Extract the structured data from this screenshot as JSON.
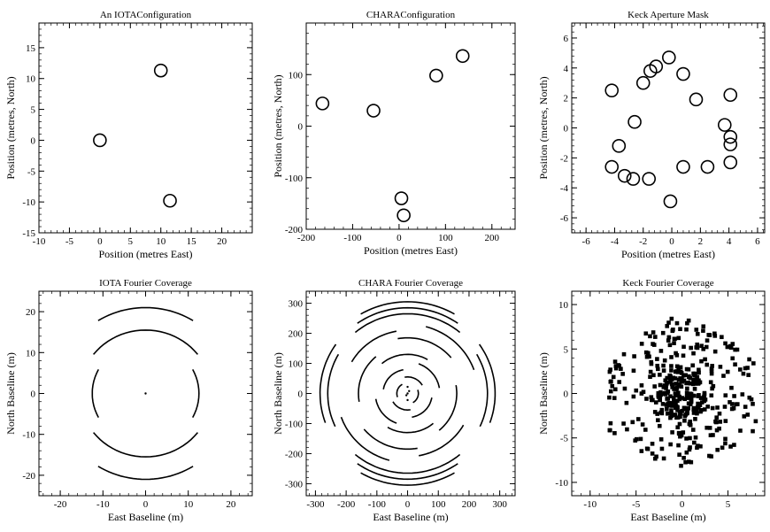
{
  "chart_data": [
    {
      "id": "iota-config",
      "type": "scatter",
      "title": "An IOTAConfiguration",
      "xlabel": "Position (metres East)",
      "ylabel": "Position (metres, North)",
      "xlim": [
        -10,
        25
      ],
      "ylim": [
        -15,
        19
      ],
      "xticks": [
        -10,
        -5,
        0,
        5,
        10,
        15,
        20
      ],
      "yticks": [
        -15,
        -10,
        -5,
        0,
        5,
        10,
        15
      ],
      "marker": "open-circle",
      "points": [
        [
          0,
          0
        ],
        [
          10,
          11.3
        ],
        [
          11.5,
          -9.8
        ]
      ]
    },
    {
      "id": "chara-config",
      "type": "scatter",
      "title": "CHARAConfiguration",
      "xlabel": "Position (metres East)",
      "ylabel": "Position (metres, North)",
      "xlim": [
        -200,
        250
      ],
      "ylim": [
        -200,
        200
      ],
      "xticks": [
        -200,
        -100,
        0,
        100,
        200
      ],
      "yticks": [
        -200,
        -100,
        0,
        100
      ],
      "marker": "open-circle",
      "points": [
        [
          -165,
          44
        ],
        [
          -55,
          30
        ],
        [
          5,
          -140
        ],
        [
          10,
          -173
        ],
        [
          80,
          98
        ],
        [
          137,
          136
        ]
      ]
    },
    {
      "id": "keck-mask",
      "type": "scatter",
      "title": "Keck Aperture Mask",
      "xlabel": "Position (metres East)",
      "ylabel": "Position (metres, North)",
      "xlim": [
        -7,
        6.5
      ],
      "ylim": [
        -7,
        7
      ],
      "xticks": [
        -6,
        -4,
        -2,
        0,
        2,
        4,
        6
      ],
      "yticks": [
        -6,
        -4,
        -2,
        0,
        2,
        4,
        6
      ],
      "marker": "open-circle",
      "points": [
        [
          -4.2,
          2.5
        ],
        [
          -2.0,
          3.0
        ],
        [
          -1.5,
          3.8
        ],
        [
          -1.1,
          4.1
        ],
        [
          -0.2,
          4.7
        ],
        [
          0.8,
          3.6
        ],
        [
          1.7,
          1.9
        ],
        [
          4.1,
          2.2
        ],
        [
          3.7,
          0.2
        ],
        [
          4.1,
          -0.6
        ],
        [
          4.1,
          -1.1
        ],
        [
          4.1,
          -2.3
        ],
        [
          2.5,
          -2.6
        ],
        [
          0.8,
          -2.6
        ],
        [
          -0.1,
          -4.9
        ],
        [
          -1.6,
          -3.4
        ],
        [
          -2.7,
          -3.4
        ],
        [
          -3.3,
          -3.2
        ],
        [
          -4.2,
          -2.6
        ],
        [
          -3.7,
          -1.2
        ],
        [
          -2.6,
          0.4
        ]
      ]
    },
    {
      "id": "iota-fourier",
      "type": "scatter",
      "title": "IOTA Fourier Coverage",
      "xlabel": "East Baseline (m)",
      "ylabel": "North Baseline (m)",
      "xlim": [
        -25,
        25
      ],
      "ylim": [
        -25,
        25
      ],
      "xticks": [
        -20,
        -10,
        0,
        10,
        20
      ],
      "yticks": [
        -20,
        -10,
        0,
        10,
        20
      ],
      "marker": "arc-track",
      "tracks": [
        {
          "r": 21,
          "a0": 58,
          "a1": 122
        },
        {
          "r": 21,
          "a0": 238,
          "a1": 302
        },
        {
          "r": 15.5,
          "a0": 38,
          "a1": 142
        },
        {
          "r": 15.5,
          "a0": 218,
          "a1": 322
        },
        {
          "r": 12.5,
          "a0": -28,
          "a1": 28
        },
        {
          "r": 12.5,
          "a0": 152,
          "a1": 208
        }
      ],
      "dots": [
        [
          0,
          0
        ]
      ]
    },
    {
      "id": "chara-fourier",
      "type": "scatter",
      "title": "CHARA Fourier Coverage",
      "xlabel": "East Baseline (m)",
      "ylabel": "North Baseline (m)",
      "xlim": [
        -330,
        350
      ],
      "ylim": [
        -340,
        340
      ],
      "xticks": [
        -300,
        -200,
        -100,
        0,
        100,
        200,
        300
      ],
      "yticks": [
        -300,
        -200,
        -100,
        0,
        100,
        200,
        300
      ],
      "marker": "arc-track",
      "tracks": [
        {
          "r": 305,
          "a0": 60,
          "a1": 120
        },
        {
          "r": 285,
          "a0": 55,
          "a1": 125
        },
        {
          "r": 265,
          "a0": 50,
          "a1": 130
        },
        {
          "r": 305,
          "a0": 240,
          "a1": 300
        },
        {
          "r": 285,
          "a0": 235,
          "a1": 305
        },
        {
          "r": 265,
          "a0": 230,
          "a1": 310
        },
        {
          "r": 285,
          "a0": 145,
          "a1": 200
        },
        {
          "r": 260,
          "a0": 150,
          "a1": 205
        },
        {
          "r": 285,
          "a0": -20,
          "a1": 35
        },
        {
          "r": 260,
          "a0": -25,
          "a1": 30
        },
        {
          "r": 230,
          "a0": 20,
          "a1": 75
        },
        {
          "r": 230,
          "a0": 200,
          "a1": 255
        },
        {
          "r": 210,
          "a0": 100,
          "a1": 150
        },
        {
          "r": 210,
          "a0": 280,
          "a1": 330
        },
        {
          "r": 185,
          "a0": 40,
          "a1": 100
        },
        {
          "r": 185,
          "a0": 220,
          "a1": 280
        },
        {
          "r": 160,
          "a0": 130,
          "a1": 190
        },
        {
          "r": 160,
          "a0": 310,
          "a1": 370
        },
        {
          "r": 130,
          "a0": 60,
          "a1": 130
        },
        {
          "r": 130,
          "a0": 240,
          "a1": 310
        },
        {
          "r": 105,
          "a0": 10,
          "a1": 70
        },
        {
          "r": 105,
          "a0": 190,
          "a1": 250
        },
        {
          "r": 80,
          "a0": 100,
          "a1": 170
        },
        {
          "r": 80,
          "a0": 280,
          "a1": 350
        },
        {
          "r": 55,
          "a0": 30,
          "a1": 100
        },
        {
          "r": 55,
          "a0": 210,
          "a1": 280
        },
        {
          "r": 35,
          "a0": 120,
          "a1": 200
        },
        {
          "r": 35,
          "a0": 300,
          "a1": 380
        }
      ],
      "dots": [
        [
          0,
          0
        ],
        [
          5,
          8
        ],
        [
          -4,
          -6
        ],
        [
          0,
          22
        ],
        [
          0,
          -22
        ]
      ]
    },
    {
      "id": "keck-fourier",
      "type": "scatter",
      "title": "Keck Fourier Coverage",
      "xlabel": "East Baseline (m)",
      "ylabel": "North Baseline (m)",
      "xlim": [
        -12,
        9
      ],
      "ylim": [
        -11.5,
        11.5
      ],
      "xticks": [
        -10,
        -5,
        0,
        5
      ],
      "yticks": [
        -10,
        -5,
        0,
        5,
        10
      ],
      "marker": "filled-square",
      "hexagon_radius": 9.3
    }
  ]
}
